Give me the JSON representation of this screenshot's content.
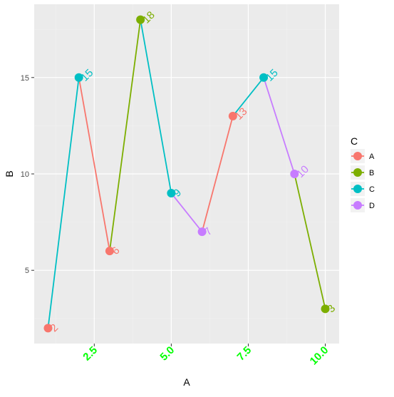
{
  "chart_data": {
    "type": "line",
    "xlabel": "A",
    "ylabel": "B",
    "xlim": [
      0.55,
      10.45
    ],
    "ylim": [
      1.2,
      18.8
    ],
    "x_ticks": [
      2.5,
      5.0,
      7.5,
      10.0
    ],
    "x_tick_labels": [
      "2.5",
      "5.0",
      "7.5",
      "10.0"
    ],
    "x_tick_color": "#00ff00",
    "x_tick_angle": -45,
    "y_ticks": [
      5,
      10,
      15
    ],
    "y_tick_labels": [
      "5",
      "10",
      "15"
    ],
    "minor_x": [
      1.25,
      3.75,
      6.25,
      8.75
    ],
    "minor_y": [
      2.5,
      7.5,
      12.5,
      17.5
    ],
    "grid": true,
    "panel_background": "#ebebeb",
    "legend": {
      "title": "C",
      "position": "right",
      "entries": [
        {
          "label": "A",
          "color": "#f8766d"
        },
        {
          "label": "B",
          "color": "#7cae00"
        },
        {
          "label": "C",
          "color": "#00bfc4"
        },
        {
          "label": "D",
          "color": "#c77cff"
        }
      ]
    },
    "points": [
      {
        "x": 1,
        "y": 2,
        "group": "A",
        "label": "2"
      },
      {
        "x": 2,
        "y": 15,
        "group": "C",
        "label": "15"
      },
      {
        "x": 3,
        "y": 6,
        "group": "A",
        "label": "6"
      },
      {
        "x": 4,
        "y": 18,
        "group": "B",
        "label": "18"
      },
      {
        "x": 5,
        "y": 9,
        "group": "C",
        "label": "9"
      },
      {
        "x": 6,
        "y": 7,
        "group": "D",
        "label": "7"
      },
      {
        "x": 7,
        "y": 13,
        "group": "A",
        "label": "13"
      },
      {
        "x": 8,
        "y": 15,
        "group": "C",
        "label": "15"
      },
      {
        "x": 9,
        "y": 10,
        "group": "D",
        "label": "10"
      },
      {
        "x": 10,
        "y": 3,
        "group": "B",
        "label": "3"
      }
    ]
  }
}
